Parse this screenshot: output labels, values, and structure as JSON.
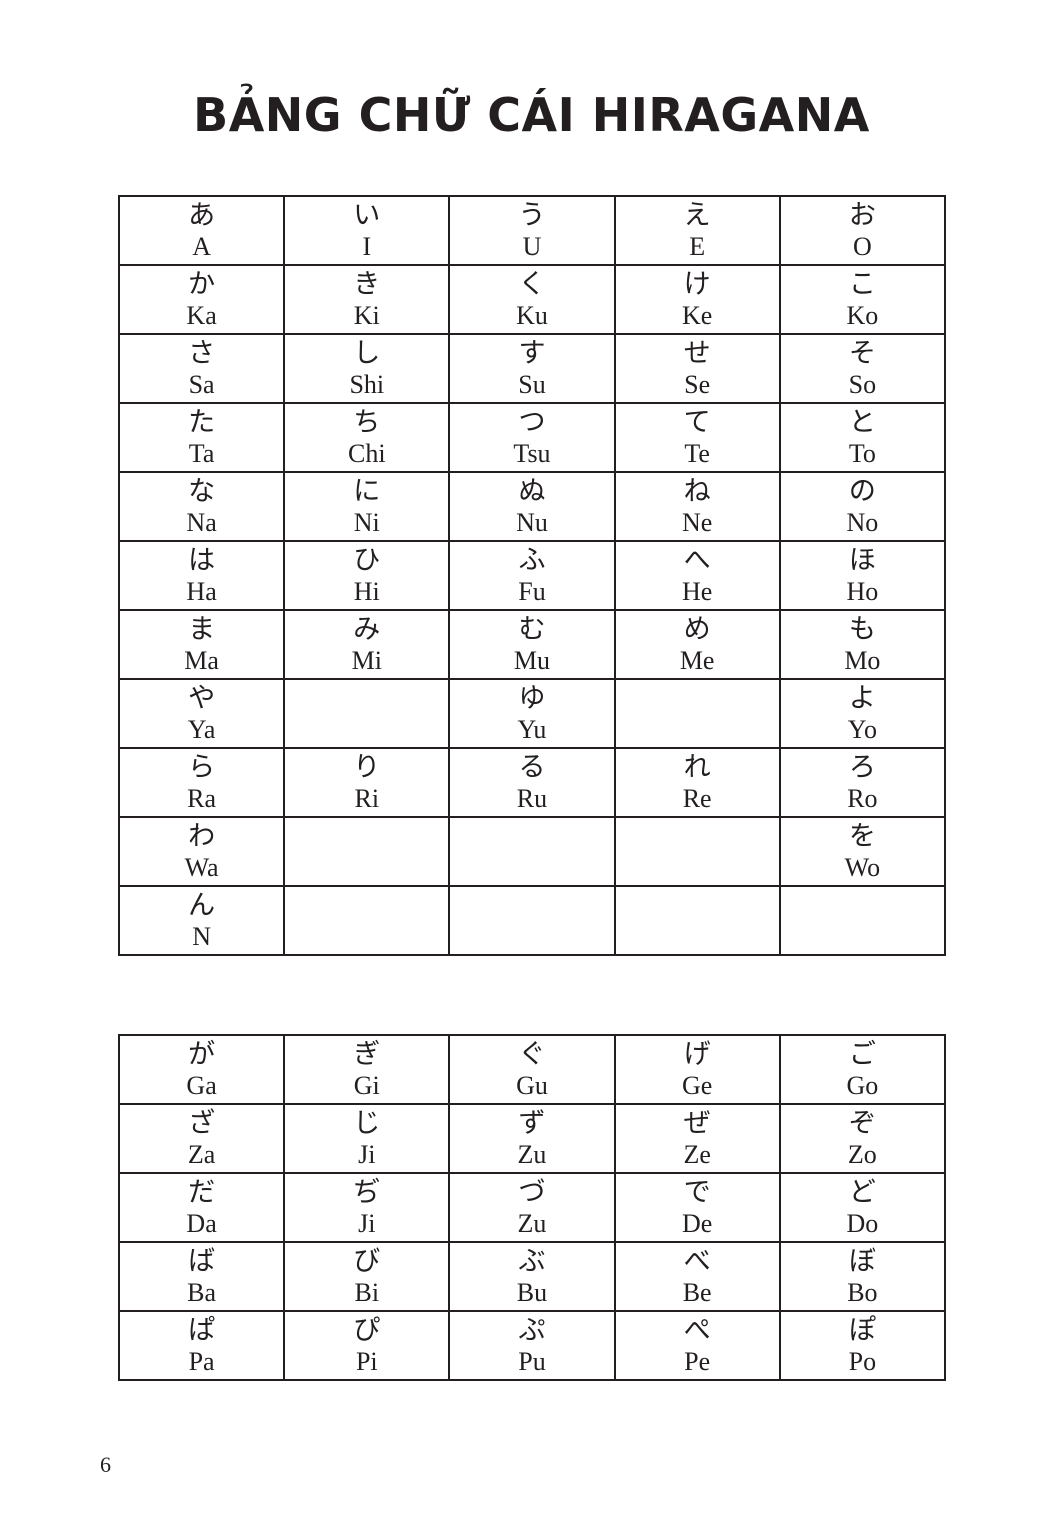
{
  "title": "BẢNG CHỮ CÁI HIRAGANA",
  "page_number": "6",
  "basic_table": [
    [
      [
        "あ",
        "A"
      ],
      [
        "い",
        "I"
      ],
      [
        "う",
        "U"
      ],
      [
        "え",
        "E"
      ],
      [
        "お",
        "O"
      ]
    ],
    [
      [
        "か",
        "Ka"
      ],
      [
        "き",
        "Ki"
      ],
      [
        "く",
        "Ku"
      ],
      [
        "け",
        "Ke"
      ],
      [
        "こ",
        "Ko"
      ]
    ],
    [
      [
        "さ",
        "Sa"
      ],
      [
        "し",
        "Shi"
      ],
      [
        "す",
        "Su"
      ],
      [
        "せ",
        "Se"
      ],
      [
        "そ",
        "So"
      ]
    ],
    [
      [
        "た",
        "Ta"
      ],
      [
        "ち",
        "Chi"
      ],
      [
        "つ",
        "Tsu"
      ],
      [
        "て",
        "Te"
      ],
      [
        "と",
        "To"
      ]
    ],
    [
      [
        "な",
        "Na"
      ],
      [
        "に",
        "Ni"
      ],
      [
        "ぬ",
        "Nu"
      ],
      [
        "ね",
        "Ne"
      ],
      [
        "の",
        "No"
      ]
    ],
    [
      [
        "は",
        "Ha"
      ],
      [
        "ひ",
        "Hi"
      ],
      [
        "ふ",
        "Fu"
      ],
      [
        "へ",
        "He"
      ],
      [
        "ほ",
        "Ho"
      ]
    ],
    [
      [
        "ま",
        "Ma"
      ],
      [
        "み",
        "Mi"
      ],
      [
        "む",
        "Mu"
      ],
      [
        "め",
        "Me"
      ],
      [
        "も",
        "Mo"
      ]
    ],
    [
      [
        "や",
        "Ya"
      ],
      [
        "",
        ""
      ],
      [
        "ゆ",
        "Yu"
      ],
      [
        "",
        ""
      ],
      [
        "よ",
        "Yo"
      ]
    ],
    [
      [
        "ら",
        "Ra"
      ],
      [
        "り",
        "Ri"
      ],
      [
        "る",
        "Ru"
      ],
      [
        "れ",
        "Re"
      ],
      [
        "ろ",
        "Ro"
      ]
    ],
    [
      [
        "わ",
        "Wa"
      ],
      [
        "",
        ""
      ],
      [
        "",
        ""
      ],
      [
        "",
        ""
      ],
      [
        "を",
        "Wo"
      ]
    ],
    [
      [
        "ん",
        "N"
      ],
      [
        "",
        ""
      ],
      [
        "",
        ""
      ],
      [
        "",
        ""
      ],
      [
        "",
        ""
      ]
    ]
  ],
  "voiced_table": [
    [
      [
        "が",
        "Ga"
      ],
      [
        "ぎ",
        "Gi"
      ],
      [
        "ぐ",
        "Gu"
      ],
      [
        "げ",
        "Ge"
      ],
      [
        "ご",
        "Go"
      ]
    ],
    [
      [
        "ざ",
        "Za"
      ],
      [
        "じ",
        "Ji"
      ],
      [
        "ず",
        "Zu"
      ],
      [
        "ぜ",
        "Ze"
      ],
      [
        "ぞ",
        "Zo"
      ]
    ],
    [
      [
        "だ",
        "Da"
      ],
      [
        "ぢ",
        "Ji"
      ],
      [
        "づ",
        "Zu"
      ],
      [
        "で",
        "De"
      ],
      [
        "ど",
        "Do"
      ]
    ],
    [
      [
        "ば",
        "Ba"
      ],
      [
        "び",
        "Bi"
      ],
      [
        "ぶ",
        "Bu"
      ],
      [
        "べ",
        "Be"
      ],
      [
        "ぼ",
        "Bo"
      ]
    ],
    [
      [
        "ぱ",
        "Pa"
      ],
      [
        "ぴ",
        "Pi"
      ],
      [
        "ぷ",
        "Pu"
      ],
      [
        "ぺ",
        "Pe"
      ],
      [
        "ぽ",
        "Po"
      ]
    ]
  ]
}
